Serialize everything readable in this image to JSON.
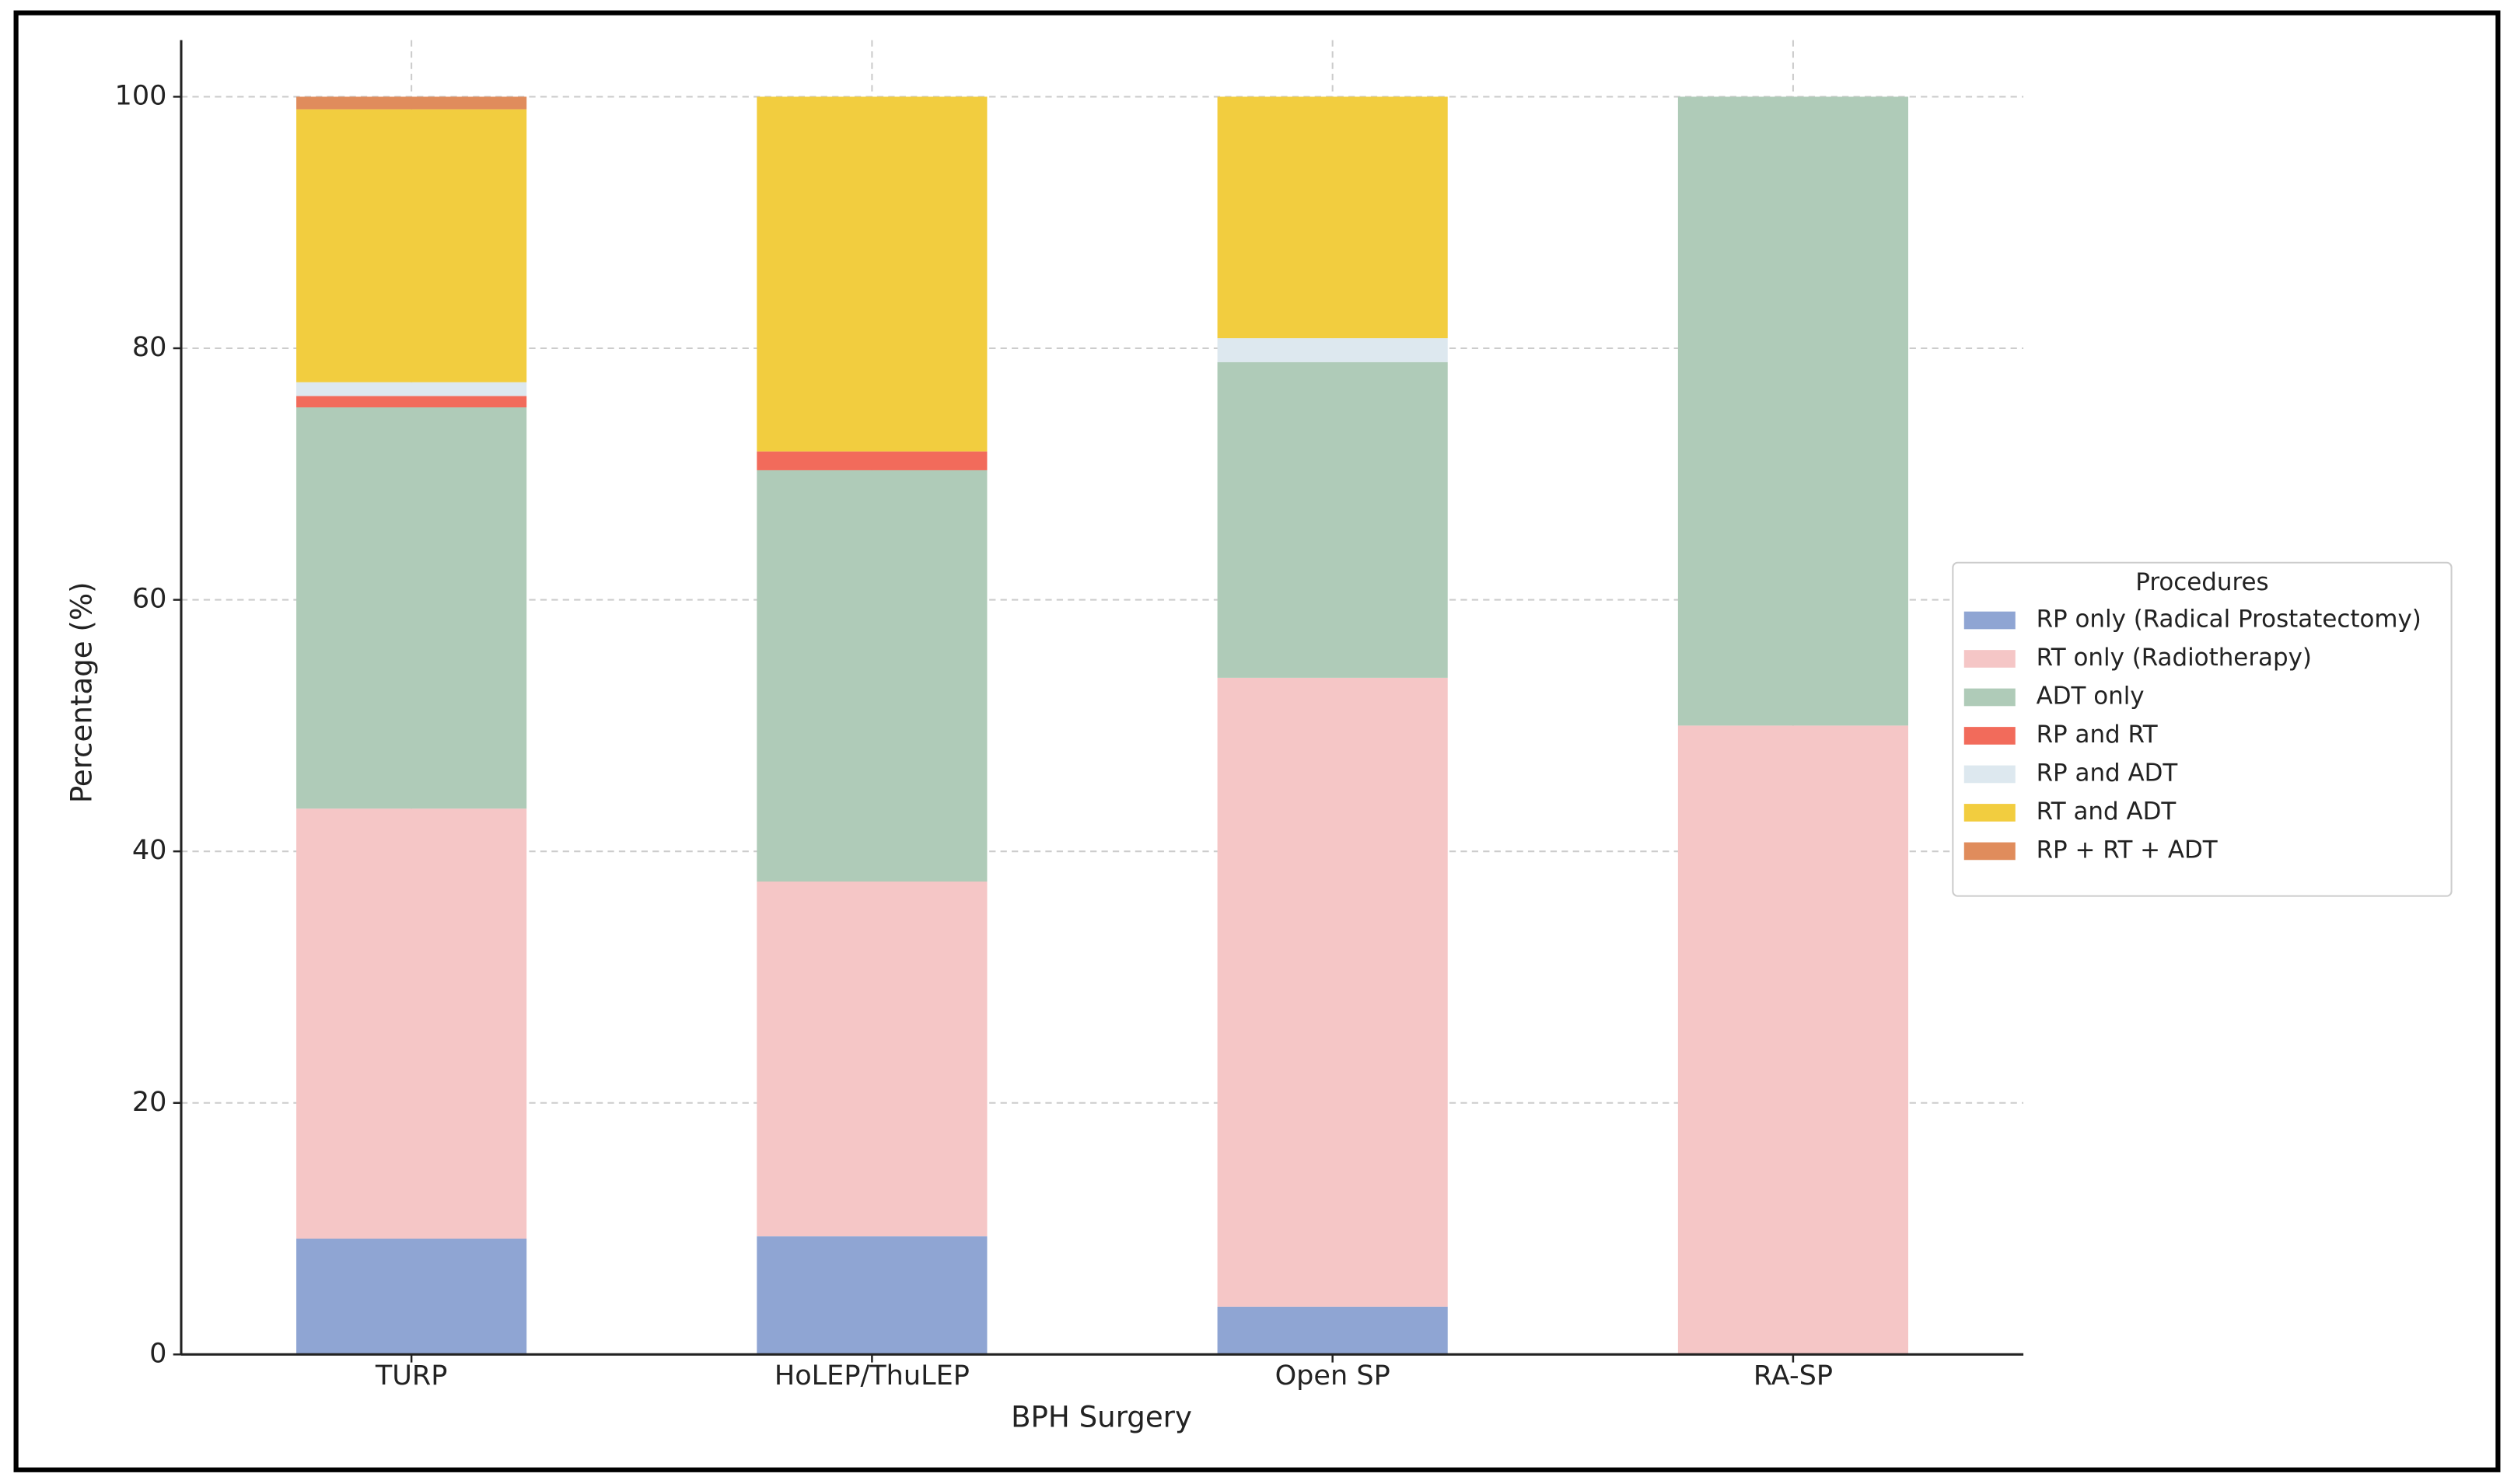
{
  "chart_data": {
    "type": "stacked_bar",
    "x_label": "BPH Surgery",
    "y_label": "Percentage (%)",
    "categories": [
      "TURP",
      "HoLEP/ThuLEP",
      "Open SP",
      "RA-SP"
    ],
    "series": [
      {
        "name": "RP only (Radical Prostatectomy)",
        "color": "#8fa5d3",
        "values": [
          9.2,
          9.4,
          3.8,
          0
        ]
      },
      {
        "name": "RT only (Radiotherapy)",
        "color": "#f5c6c6",
        "values": [
          34.2,
          28.2,
          50.0,
          50.0
        ]
      },
      {
        "name": "ADT only",
        "color": "#afcbb8",
        "values": [
          31.9,
          32.7,
          25.1,
          50.0
        ]
      },
      {
        "name": "RP and RT",
        "color": "#f26b5b",
        "values": [
          0.9,
          1.5,
          0,
          0
        ]
      },
      {
        "name": "RP and ADT",
        "color": "#dde8ef",
        "values": [
          1.1,
          0,
          1.9,
          0
        ]
      },
      {
        "name": "RT and ADT",
        "color": "#f2cd3f",
        "values": [
          21.7,
          28.2,
          19.2,
          0
        ]
      },
      {
        "name": "RP + RT + ADT",
        "color": "#e08c5c",
        "values": [
          1.0,
          0,
          0,
          0
        ]
      }
    ],
    "legend_title": "Procedures",
    "legend": "right",
    "ylim": [
      0,
      104.5
    ],
    "yticks": [
      0,
      20,
      40,
      60,
      80,
      100
    ],
    "grid": true
  }
}
